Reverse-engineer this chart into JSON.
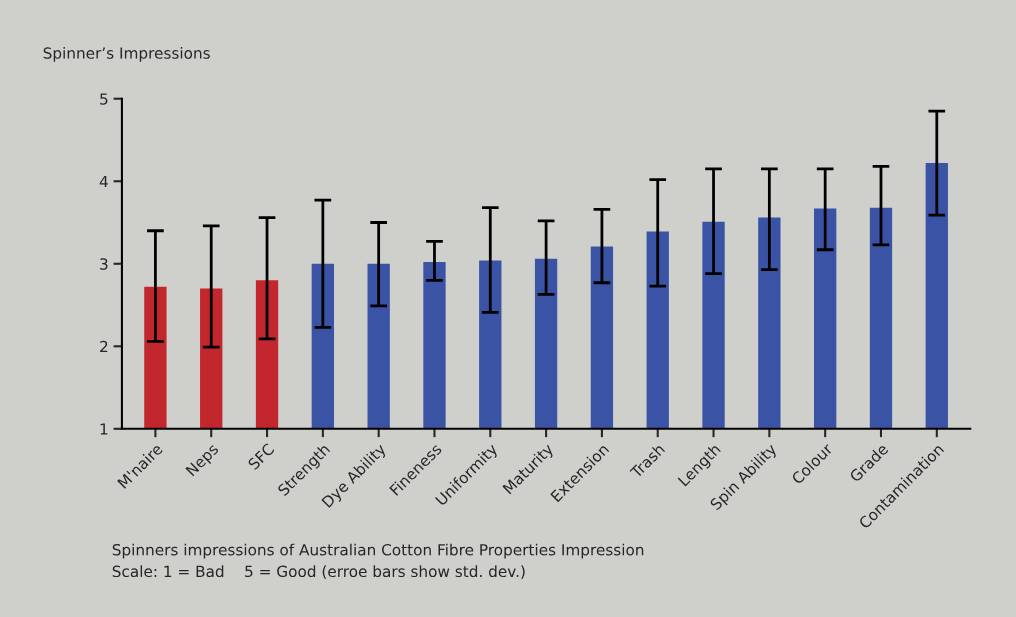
{
  "chart_data": {
    "type": "bar",
    "ylabel": "Spinner’s Impressions",
    "categories": [
      "M'naire",
      "Neps",
      "SFC",
      "Strength",
      "Dye Ability",
      "Fineness",
      "Uniformity",
      "Maturity",
      "Extension",
      "Trash",
      "Length",
      "Spin Ability",
      "Colour",
      "Grade",
      "Contamination"
    ],
    "values": [
      2.72,
      2.7,
      2.8,
      3.0,
      3.0,
      3.02,
      3.04,
      3.06,
      3.21,
      3.39,
      3.51,
      3.56,
      3.67,
      3.68,
      4.22
    ],
    "errors": [
      [
        2.06,
        3.4
      ],
      [
        1.99,
        3.46
      ],
      [
        2.09,
        3.56
      ],
      [
        2.23,
        3.77
      ],
      [
        2.49,
        3.5
      ],
      [
        2.8,
        3.27
      ],
      [
        2.41,
        3.68
      ],
      [
        2.63,
        3.52
      ],
      [
        2.77,
        3.66
      ],
      [
        2.73,
        4.02
      ],
      [
        2.88,
        4.15
      ],
      [
        2.93,
        4.15
      ],
      [
        3.17,
        4.15
      ],
      [
        3.23,
        4.18
      ],
      [
        3.59,
        4.85
      ]
    ],
    "colors": [
      "#c1272d",
      "#c1272d",
      "#c1272d",
      "#3a53a4",
      "#3a53a4",
      "#3a53a4",
      "#3a53a4",
      "#3a53a4",
      "#3a53a4",
      "#3a53a4",
      "#3a53a4",
      "#3a53a4",
      "#3a53a4",
      "#3a53a4",
      "#3a53a4"
    ],
    "ylim": [
      1,
      5
    ],
    "yticks": [
      1,
      2,
      3,
      4,
      5
    ],
    "legend": false,
    "annotations": [
      "Spinners impressions of Australian Cotton Fibre Properties Impression",
      "Scale: 1 = Bad    5 = Good (erroe bars show std. dev.)"
    ]
  }
}
